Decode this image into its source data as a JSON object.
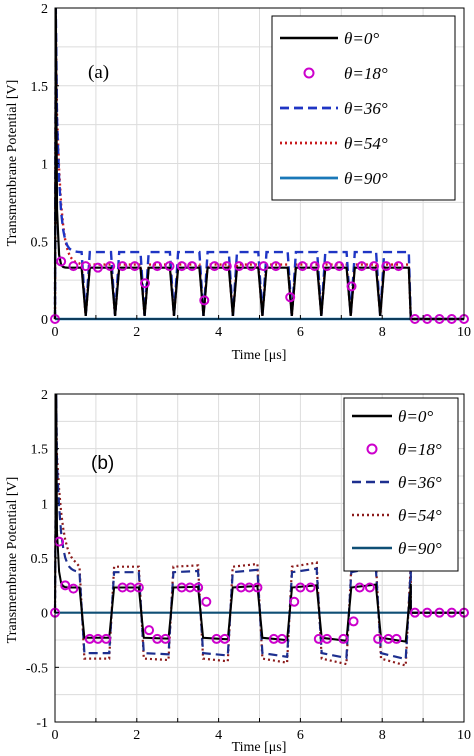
{
  "colors": {
    "theta0": "#000000",
    "theta18": "#cc00cc",
    "theta36": "#1f35c4",
    "theta54": "#c8191c",
    "theta90": "#1a78b8",
    "theta90_b": "#0f4f75",
    "theta54_b": "#8b1a1a",
    "theta36_b": "#1d2f8f",
    "grid": "#dcdcdc"
  },
  "chart_data": [
    {
      "type": "line",
      "panel_label": "(a)",
      "xlabel": "Time [μs]",
      "ylabel": "Transmembrane Potential [V]",
      "xlim": [
        0,
        10
      ],
      "ylim": [
        0,
        2
      ],
      "xticks": [
        "0",
        "2",
        "4",
        "6",
        "8",
        "10"
      ],
      "yticks": [
        "0",
        "0.5",
        "1",
        "1.5",
        "2"
      ],
      "grid": true,
      "legend_position": "top-right",
      "series": [
        {
          "name": "θ=0°",
          "style": "solid",
          "peak": 2.0,
          "plateau": 0.33,
          "end": 8.7
        },
        {
          "name": "θ=18°",
          "style": "circle",
          "markers_x": [
            0,
            0.15,
            0.45,
            0.75,
            1.05,
            1.35,
            1.65,
            1.95,
            2.2,
            2.5,
            2.8,
            3.1,
            3.35,
            3.65,
            3.9,
            4.2,
            4.5,
            4.8,
            5.1,
            5.4,
            5.75,
            6.05,
            6.35,
            6.65,
            6.95,
            7.25,
            7.5,
            7.8,
            8.1,
            8.4,
            8.8,
            9.1,
            9.4,
            9.7,
            10
          ],
          "markers_y": [
            0,
            0.37,
            0.34,
            0.34,
            0.33,
            0.34,
            0.34,
            0.34,
            0.23,
            0.34,
            0.34,
            0.34,
            0.34,
            0.12,
            0.34,
            0.34,
            0.34,
            0.34,
            0.34,
            0.34,
            0.14,
            0.34,
            0.34,
            0.34,
            0.34,
            0.21,
            0.34,
            0.34,
            0.34,
            0.34,
            0,
            0,
            0,
            0,
            0
          ]
        },
        {
          "name": "θ=36°",
          "style": "dashed",
          "peak": 2.0,
          "plateau": 0.43,
          "end": 8.7
        },
        {
          "name": "θ=54°",
          "style": "dotted",
          "peak": 1.85,
          "plateau": 0.35,
          "end": 8.7
        },
        {
          "name": "θ=90°",
          "style": "solid",
          "value": 0
        }
      ],
      "annotations": []
    },
    {
      "type": "line",
      "panel_label": "(b)",
      "xlabel": "Time [μs]",
      "ylabel": "Transmembrane Potential [V]",
      "xlim": [
        0,
        10
      ],
      "ylim": [
        -1,
        2
      ],
      "xticks": [
        "0",
        "2",
        "4",
        "6",
        "8",
        "10"
      ],
      "yticks": [
        "-1",
        "-0.5",
        "0",
        "0.5",
        "1",
        "1.5",
        "2"
      ],
      "grid": true,
      "legend_position": "top-right",
      "series": [
        {
          "name": "θ=0°",
          "style": "solid",
          "peak": 2.0,
          "amplitude": 0.23,
          "end": 8.7
        },
        {
          "name": "θ=18°",
          "style": "circle",
          "markers_x": [
            0,
            0.1,
            0.25,
            0.45,
            0.85,
            1.05,
            1.25,
            1.65,
            1.85,
            2.05,
            2.3,
            2.5,
            2.7,
            3.1,
            3.3,
            3.5,
            3.7,
            3.95,
            4.15,
            4.55,
            4.75,
            4.95,
            5.35,
            5.55,
            5.85,
            6.0,
            6.25,
            6.45,
            6.65,
            7.05,
            7.3,
            7.45,
            7.7,
            7.9,
            8.15,
            8.35,
            8.8,
            9.1,
            9.4,
            9.7,
            10
          ],
          "markers_y": [
            0,
            0.65,
            0.25,
            0.22,
            -0.24,
            -0.24,
            -0.24,
            0.23,
            0.23,
            0.23,
            -0.16,
            -0.24,
            -0.24,
            0.23,
            0.23,
            0.23,
            0.1,
            -0.24,
            -0.24,
            0.23,
            0.23,
            0.23,
            -0.24,
            -0.24,
            0.1,
            0.23,
            0.23,
            -0.24,
            -0.24,
            -0.24,
            -0.08,
            0.23,
            0.23,
            -0.24,
            -0.24,
            -0.24,
            0,
            0,
            0,
            0,
            0
          ]
        },
        {
          "name": "θ=36°",
          "style": "dashed",
          "peak": 2.0,
          "amplitude": 0.37,
          "end": 8.7
        },
        {
          "name": "θ=54°",
          "style": "dotted",
          "peak": 1.85,
          "amplitude": 0.42,
          "end": 8.7
        },
        {
          "name": "θ=90°",
          "style": "solid",
          "value": 0
        }
      ],
      "annotations": []
    }
  ]
}
